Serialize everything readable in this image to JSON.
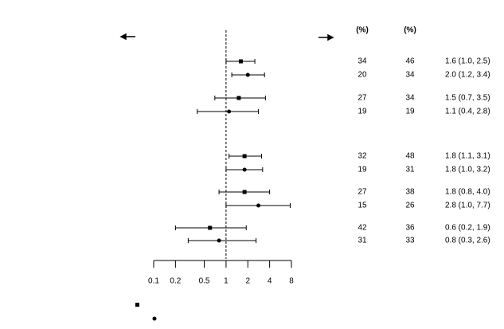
{
  "chart_data": {
    "type": "forest",
    "xscale": "log",
    "xlim": [
      0.1,
      8
    ],
    "xticks": [
      0.1,
      0.2,
      0.5,
      1,
      2,
      4,
      8
    ],
    "reference": 1,
    "color": "#000000",
    "column_headers": [
      "(%)",
      "(%)"
    ],
    "rows": [
      {
        "pct1": 34,
        "pct2": 46,
        "estimate": 1.6,
        "low": 1.0,
        "high": 2.5,
        "ci_label": "1.6 (1.0, 2.5)",
        "marker": "square"
      },
      {
        "pct1": 20,
        "pct2": 34,
        "estimate": 2.0,
        "low": 1.2,
        "high": 3.4,
        "ci_label": "2.0 (1.2, 3.4)",
        "marker": "circle"
      },
      {
        "pct1": 27,
        "pct2": 34,
        "estimate": 1.5,
        "low": 0.7,
        "high": 3.5,
        "ci_label": "1.5 (0.7, 3.5)",
        "marker": "square"
      },
      {
        "pct1": 19,
        "pct2": 19,
        "estimate": 1.1,
        "low": 0.4,
        "high": 2.8,
        "ci_label": "1.1 (0.4, 2.8)",
        "marker": "circle"
      },
      {
        "pct1": 32,
        "pct2": 48,
        "estimate": 1.8,
        "low": 1.1,
        "high": 3.1,
        "ci_label": "1.8 (1.1, 3.1)",
        "marker": "square"
      },
      {
        "pct1": 19,
        "pct2": 31,
        "estimate": 1.8,
        "low": 1.0,
        "high": 3.2,
        "ci_label": "1.8 (1.0, 3.2)",
        "marker": "circle"
      },
      {
        "pct1": 27,
        "pct2": 38,
        "estimate": 1.8,
        "low": 0.8,
        "high": 4.0,
        "ci_label": "1.8 (0.8, 4.0)",
        "marker": "square"
      },
      {
        "pct1": 15,
        "pct2": 26,
        "estimate": 2.8,
        "low": 1.0,
        "high": 7.7,
        "ci_label": "2.8 (1.0, 7.7)",
        "marker": "circle"
      },
      {
        "pct1": 42,
        "pct2": 36,
        "estimate": 0.6,
        "low": 0.2,
        "high": 1.9,
        "ci_label": "0.6 (0.2, 1.9)",
        "marker": "square"
      },
      {
        "pct1": 31,
        "pct2": 33,
        "estimate": 0.8,
        "low": 0.3,
        "high": 2.6,
        "ci_label": "0.8 (0.3, 2.6)",
        "marker": "circle"
      }
    ]
  }
}
